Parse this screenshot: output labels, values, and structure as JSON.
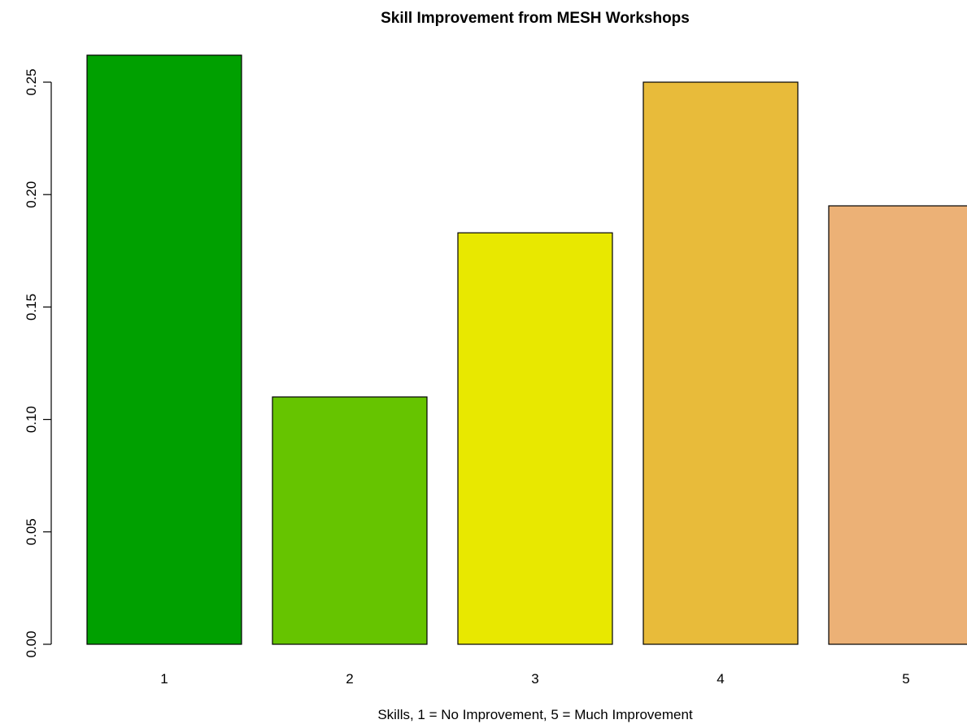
{
  "chart_data": {
    "type": "bar",
    "title": "Skill Improvement from MESH Workshops",
    "xlabel": "Skills, 1 = No Improvement, 5 = Much Improvement",
    "ylabel": "",
    "categories": [
      "1",
      "2",
      "3",
      "4",
      "5"
    ],
    "values": [
      0.262,
      0.11,
      0.183,
      0.25,
      0.195
    ],
    "colors": [
      "#00a000",
      "#66c400",
      "#e8e800",
      "#e8bb3a",
      "#ecb176"
    ],
    "ylim": [
      0,
      0.26
    ],
    "yticks": [
      0.0,
      0.05,
      0.1,
      0.15,
      0.2,
      0.25
    ],
    "ytick_labels": [
      "0.00",
      "0.05",
      "0.10",
      "0.15",
      "0.20",
      "0.25"
    ],
    "grid": false,
    "legend": "none"
  }
}
